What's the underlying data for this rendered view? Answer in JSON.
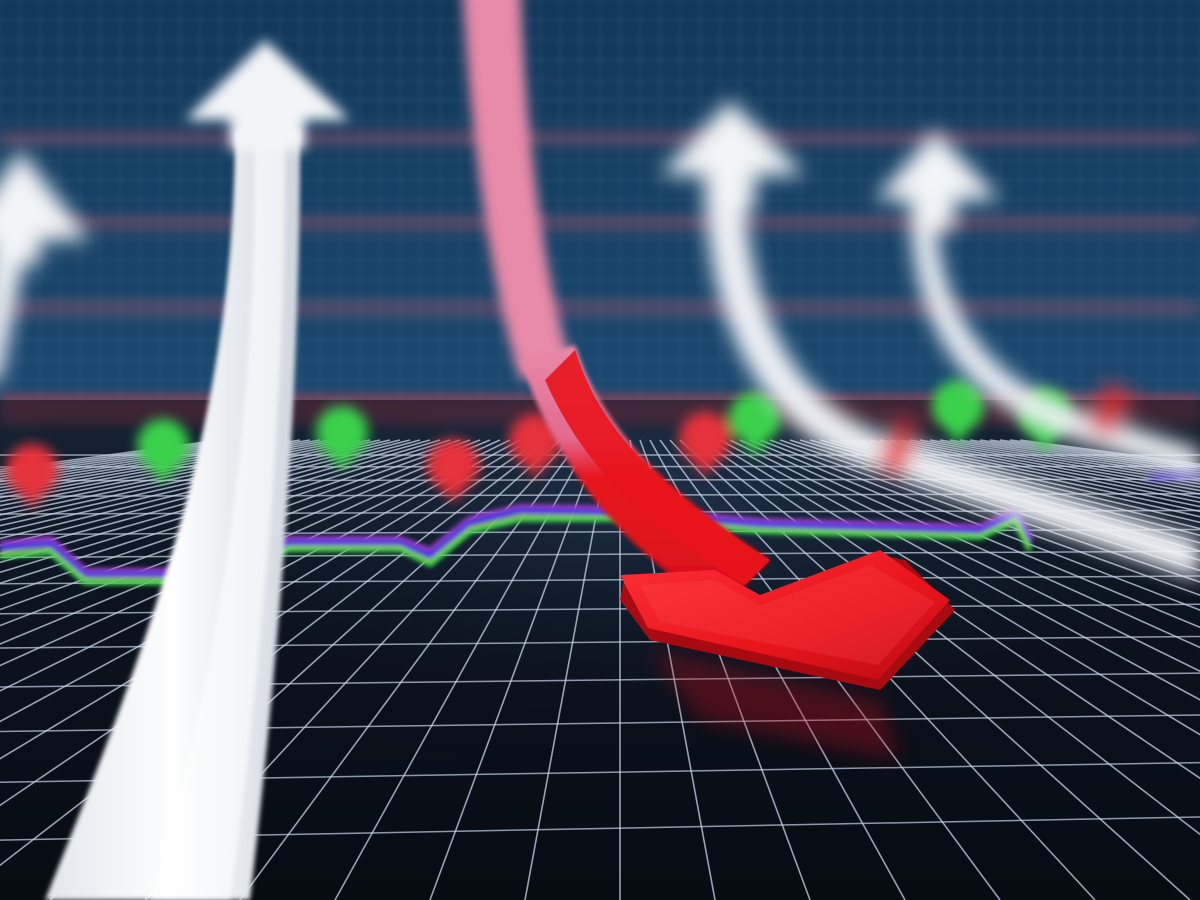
{
  "scene": {
    "subject": "stock-market-arrows-3d-illustration",
    "colors": {
      "sky_top": "#12385a",
      "sky_bottom": "#1d4c74",
      "band": "#c25a6a",
      "floor_dark": "#0a0f18",
      "grid_line": "#c8d4e6",
      "arrow_white": "#f2f4f7",
      "arrow_red": "#e8141c",
      "arrow_pink": "#e88aa9",
      "marker_green": "#3bd14b",
      "marker_red": "#e5333a",
      "line_blue": "#2a32e0",
      "line_green": "#3bd14b",
      "line_purple": "#a040d0"
    },
    "arrows": [
      {
        "name": "white-up-arrow-far-left",
        "direction": "up"
      },
      {
        "name": "white-up-arrow-left",
        "direction": "up"
      },
      {
        "name": "red-down-arrow-center",
        "direction": "down"
      },
      {
        "name": "white-up-arrow-right",
        "direction": "up"
      },
      {
        "name": "white-up-arrow-far-right",
        "direction": "up"
      }
    ],
    "markers": [
      {
        "color": "red"
      },
      {
        "color": "green"
      },
      {
        "color": "green"
      },
      {
        "color": "red"
      },
      {
        "color": "red"
      },
      {
        "color": "red"
      },
      {
        "color": "green"
      },
      {
        "color": "green"
      },
      {
        "color": "green"
      }
    ]
  }
}
